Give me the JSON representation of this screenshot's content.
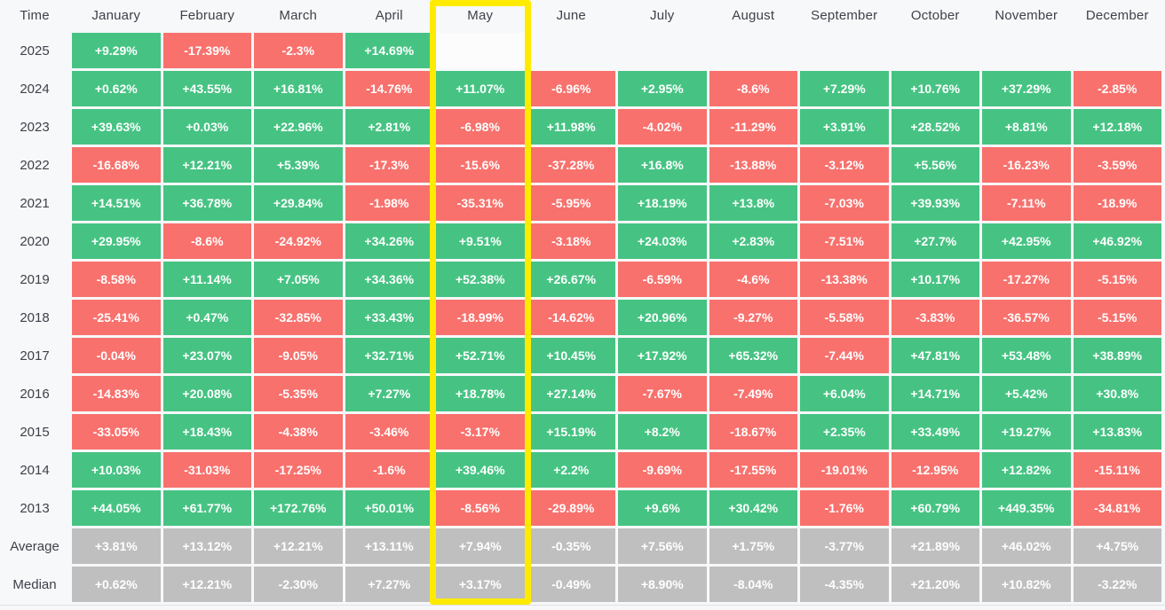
{
  "colors": {
    "positive": "#46c383",
    "negative": "#f8716d",
    "summary": "#bfbfbf",
    "highlight_border": "#ffeb00",
    "cell_text": "#ffffff",
    "label_text": "#3e414a",
    "background": "#f7f8f9",
    "divider": "#dfe1e4",
    "empty_highlight_cell": "#fcfcfd"
  },
  "highlight": {
    "column": "May"
  },
  "chart_data": {
    "type": "heatmap",
    "corner_label": "Time",
    "columns": [
      "January",
      "February",
      "March",
      "April",
      "May",
      "June",
      "July",
      "August",
      "September",
      "October",
      "November",
      "December"
    ],
    "highlighted_column": "May",
    "rows": [
      {
        "label": "2025",
        "summary": false,
        "values": [
          "+9.29%",
          "-17.39%",
          "-2.3%",
          "+14.69%",
          null,
          null,
          null,
          null,
          null,
          null,
          null,
          null
        ]
      },
      {
        "label": "2024",
        "summary": false,
        "values": [
          "+0.62%",
          "+43.55%",
          "+16.81%",
          "-14.76%",
          "+11.07%",
          "-6.96%",
          "+2.95%",
          "-8.6%",
          "+7.29%",
          "+10.76%",
          "+37.29%",
          "-2.85%"
        ]
      },
      {
        "label": "2023",
        "summary": false,
        "values": [
          "+39.63%",
          "+0.03%",
          "+22.96%",
          "+2.81%",
          "-6.98%",
          "+11.98%",
          "-4.02%",
          "-11.29%",
          "+3.91%",
          "+28.52%",
          "+8.81%",
          "+12.18%"
        ]
      },
      {
        "label": "2022",
        "summary": false,
        "values": [
          "-16.68%",
          "+12.21%",
          "+5.39%",
          "-17.3%",
          "-15.6%",
          "-37.28%",
          "+16.8%",
          "-13.88%",
          "-3.12%",
          "+5.56%",
          "-16.23%",
          "-3.59%"
        ]
      },
      {
        "label": "2021",
        "summary": false,
        "values": [
          "+14.51%",
          "+36.78%",
          "+29.84%",
          "-1.98%",
          "-35.31%",
          "-5.95%",
          "+18.19%",
          "+13.8%",
          "-7.03%",
          "+39.93%",
          "-7.11%",
          "-18.9%"
        ]
      },
      {
        "label": "2020",
        "summary": false,
        "values": [
          "+29.95%",
          "-8.6%",
          "-24.92%",
          "+34.26%",
          "+9.51%",
          "-3.18%",
          "+24.03%",
          "+2.83%",
          "-7.51%",
          "+27.7%",
          "+42.95%",
          "+46.92%"
        ]
      },
      {
        "label": "2019",
        "summary": false,
        "values": [
          "-8.58%",
          "+11.14%",
          "+7.05%",
          "+34.36%",
          "+52.38%",
          "+26.67%",
          "-6.59%",
          "-4.6%",
          "-13.38%",
          "+10.17%",
          "-17.27%",
          "-5.15%"
        ]
      },
      {
        "label": "2018",
        "summary": false,
        "values": [
          "-25.41%",
          "+0.47%",
          "-32.85%",
          "+33.43%",
          "-18.99%",
          "-14.62%",
          "+20.96%",
          "-9.27%",
          "-5.58%",
          "-3.83%",
          "-36.57%",
          "-5.15%"
        ]
      },
      {
        "label": "2017",
        "summary": false,
        "values": [
          "-0.04%",
          "+23.07%",
          "-9.05%",
          "+32.71%",
          "+52.71%",
          "+10.45%",
          "+17.92%",
          "+65.32%",
          "-7.44%",
          "+47.81%",
          "+53.48%",
          "+38.89%"
        ]
      },
      {
        "label": "2016",
        "summary": false,
        "values": [
          "-14.83%",
          "+20.08%",
          "-5.35%",
          "+7.27%",
          "+18.78%",
          "+27.14%",
          "-7.67%",
          "-7.49%",
          "+6.04%",
          "+14.71%",
          "+5.42%",
          "+30.8%"
        ]
      },
      {
        "label": "2015",
        "summary": false,
        "values": [
          "-33.05%",
          "+18.43%",
          "-4.38%",
          "-3.46%",
          "-3.17%",
          "+15.19%",
          "+8.2%",
          "-18.67%",
          "+2.35%",
          "+33.49%",
          "+19.27%",
          "+13.83%"
        ]
      },
      {
        "label": "2014",
        "summary": false,
        "values": [
          "+10.03%",
          "-31.03%",
          "-17.25%",
          "-1.6%",
          "+39.46%",
          "+2.2%",
          "-9.69%",
          "-17.55%",
          "-19.01%",
          "-12.95%",
          "+12.82%",
          "-15.11%"
        ]
      },
      {
        "label": "2013",
        "summary": false,
        "values": [
          "+44.05%",
          "+61.77%",
          "+172.76%",
          "+50.01%",
          "-8.56%",
          "-29.89%",
          "+9.6%",
          "+30.42%",
          "-1.76%",
          "+60.79%",
          "+449.35%",
          "-34.81%"
        ]
      },
      {
        "label": "Average",
        "summary": true,
        "values": [
          "+3.81%",
          "+13.12%",
          "+12.21%",
          "+13.11%",
          "+7.94%",
          "-0.35%",
          "+7.56%",
          "+1.75%",
          "-3.77%",
          "+21.89%",
          "+46.02%",
          "+4.75%"
        ]
      },
      {
        "label": "Median",
        "summary": true,
        "values": [
          "+0.62%",
          "+12.21%",
          "-2.30%",
          "+7.27%",
          "+3.17%",
          "-0.49%",
          "+8.90%",
          "-8.04%",
          "-4.35%",
          "+21.20%",
          "+10.82%",
          "-3.22%"
        ]
      }
    ]
  }
}
